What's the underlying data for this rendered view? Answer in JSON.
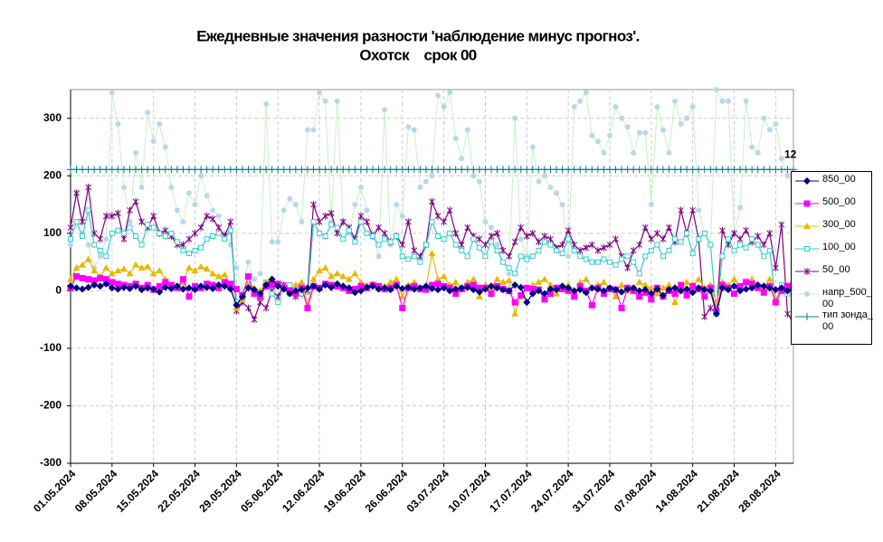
{
  "chart_data": {
    "type": "line",
    "title": "Ежедневные значения разности 'наблюдение минус прогноз'.",
    "subtitle": "Охотск    срок 00",
    "annotation": "12",
    "ylim": [
      -300,
      350
    ],
    "yticks": [
      -300,
      -200,
      -100,
      0,
      100,
      200,
      300
    ],
    "grid": true,
    "legend": "right",
    "categories": [
      "01.05.2024",
      null,
      null,
      null,
      null,
      null,
      null,
      "08.05.2024",
      null,
      null,
      null,
      null,
      null,
      null,
      "15.05.2024",
      null,
      null,
      null,
      null,
      null,
      null,
      "22.05.2024",
      null,
      null,
      null,
      null,
      null,
      null,
      "29.05.2024",
      null,
      null,
      null,
      null,
      null,
      null,
      "05.06.2024",
      null,
      null,
      null,
      null,
      null,
      null,
      "12.06.2024",
      null,
      null,
      null,
      null,
      null,
      null,
      "19.06.2024",
      null,
      null,
      null,
      null,
      null,
      null,
      "26.06.2024",
      null,
      null,
      null,
      null,
      null,
      null,
      "03.07.2024",
      null,
      null,
      null,
      null,
      null,
      null,
      "10.07.2024",
      null,
      null,
      null,
      null,
      null,
      null,
      "17.07.2024",
      null,
      null,
      null,
      null,
      null,
      null,
      "24.07.2024",
      null,
      null,
      null,
      null,
      null,
      null,
      "31.07.2024",
      null,
      null,
      null,
      null,
      null,
      null,
      "07.08.2024",
      null,
      null,
      null,
      null,
      null,
      null,
      "14.08.2024",
      null,
      null,
      null,
      null,
      null,
      null,
      "21.08.2024",
      null,
      null,
      null,
      null,
      null,
      null,
      "28.08.2024",
      null,
      null,
      null
    ],
    "series": [
      {
        "name": "850_00",
        "color": "#000080",
        "marker": "diamond",
        "values": [
          8,
          5,
          3,
          6,
          10,
          8,
          12,
          5,
          3,
          6,
          4,
          8,
          2,
          5,
          3,
          -2,
          6,
          4,
          8,
          3,
          5,
          2,
          8,
          6,
          4,
          10,
          8,
          3,
          -25,
          -10,
          5,
          2,
          -5,
          10,
          20,
          8,
          3,
          -5,
          0,
          2,
          5,
          8,
          3,
          10,
          6,
          12,
          8,
          5,
          -3,
          0,
          6,
          8,
          3,
          5,
          2,
          8,
          4,
          6,
          3,
          5,
          8,
          4,
          2,
          5,
          0,
          3,
          5,
          6,
          2,
          -2,
          3,
          8,
          5,
          2,
          0,
          10,
          6,
          -20,
          -5,
          0,
          -5,
          3,
          2,
          8,
          5,
          0,
          2,
          -3,
          5,
          3,
          0,
          5,
          2,
          -2,
          3,
          5,
          0,
          2,
          -5,
          3,
          -8,
          2,
          5,
          0,
          3,
          -3,
          5,
          2,
          0,
          -40,
          5,
          2,
          8,
          0,
          3,
          5,
          10,
          8,
          5,
          2,
          5,
          0,
          3
        ]
      },
      {
        "name": "500_00",
        "color": "#ff00ff",
        "marker": "square",
        "values": [
          5,
          25,
          22,
          20,
          18,
          22,
          20,
          15,
          12,
          10,
          8,
          12,
          5,
          10,
          2,
          8,
          15,
          10,
          5,
          20,
          -10,
          8,
          5,
          12,
          10,
          5,
          15,
          12,
          3,
          -8,
          25,
          -5,
          -10,
          8,
          10,
          12,
          5,
          0,
          -5,
          5,
          -30,
          8,
          5,
          12,
          10,
          8,
          5,
          0,
          3,
          8,
          5,
          10,
          8,
          3,
          5,
          10,
          -30,
          5,
          8,
          3,
          2,
          10,
          12,
          8,
          5,
          -5,
          3,
          8,
          10,
          5,
          5,
          -5,
          8,
          3,
          0,
          -20,
          -8,
          5,
          3,
          2,
          -15,
          -5,
          5,
          3,
          0,
          -10,
          8,
          0,
          -25,
          5,
          -5,
          3,
          2,
          -30,
          5,
          0,
          -10,
          -3,
          -15,
          5,
          -10,
          0,
          -5,
          10,
          -8,
          8,
          3,
          -10,
          5,
          -35,
          10,
          5,
          -5,
          8,
          15,
          12,
          5,
          -3,
          8,
          -20,
          0,
          8,
          10
        ]
      },
      {
        "name": "300_00",
        "color": "#e6b800",
        "marker": "triangle",
        "values": [
          20,
          40,
          45,
          55,
          35,
          25,
          40,
          30,
          35,
          38,
          30,
          45,
          40,
          42,
          30,
          35,
          20,
          10,
          5,
          15,
          40,
          35,
          42,
          38,
          30,
          25,
          28,
          10,
          -30,
          -15,
          10,
          5,
          0,
          15,
          20,
          10,
          5,
          -5,
          10,
          15,
          -25,
          20,
          35,
          40,
          25,
          30,
          25,
          20,
          30,
          15,
          10,
          12,
          5,
          8,
          15,
          20,
          -10,
          10,
          15,
          5,
          8,
          65,
          20,
          25,
          10,
          15,
          5,
          15,
          20,
          -10,
          10,
          5,
          20,
          15,
          18,
          -40,
          -10,
          5,
          10,
          15,
          20,
          10,
          -5,
          5,
          10,
          -10,
          15,
          20,
          5,
          10,
          15,
          5,
          -10,
          10,
          0,
          5,
          15,
          10,
          5,
          -5,
          5,
          10,
          -20,
          0,
          15,
          10,
          20,
          5,
          10,
          -20,
          15,
          10,
          20,
          5,
          15,
          20,
          10,
          5,
          20,
          -15,
          5,
          10,
          15
        ]
      },
      {
        "name": "100_00",
        "color": "#33cccc",
        "marker": "square-open",
        "values": [
          90,
          120,
          95,
          140,
          80,
          70,
          60,
          100,
          105,
          100,
          110,
          95,
          80,
          115,
          110,
          100,
          95,
          100,
          85,
          70,
          65,
          70,
          75,
          90,
          95,
          100,
          90,
          105,
          -20,
          -15,
          10,
          0,
          -10,
          15,
          -5,
          -20,
          5,
          10,
          0,
          -5,
          -10,
          120,
          100,
          95,
          115,
          110,
          90,
          105,
          85,
          120,
          100,
          95,
          80,
          90,
          85,
          95,
          60,
          55,
          60,
          50,
          80,
          120,
          95,
          90,
          100,
          80,
          70,
          60,
          90,
          75,
          60,
          85,
          70,
          50,
          40,
          30,
          60,
          55,
          60,
          70,
          85,
          80,
          70,
          65,
          90,
          70,
          60,
          55,
          50,
          50,
          55,
          50,
          45,
          55,
          60,
          50,
          30,
          60,
          70,
          80,
          60,
          70,
          90,
          85,
          100,
          65,
          90,
          100,
          80,
          -40,
          60,
          90,
          70,
          80,
          75,
          90,
          80,
          60,
          70,
          -20,
          10,
          -5,
          5
        ]
      },
      {
        "name": "50_00",
        "color": "#800080",
        "marker": "star",
        "values": [
          110,
          170,
          120,
          180,
          100,
          90,
          130,
          130,
          135,
          90,
          140,
          155,
          120,
          110,
          130,
          100,
          105,
          95,
          80,
          80,
          90,
          100,
          110,
          130,
          125,
          110,
          95,
          120,
          -35,
          -20,
          -30,
          -50,
          -20,
          -30,
          0,
          -10,
          10,
          0,
          -10,
          -5,
          0,
          150,
          120,
          130,
          135,
          100,
          120,
          110,
          90,
          130,
          120,
          95,
          110,
          100,
          85,
          95,
          80,
          120,
          70,
          60,
          80,
          155,
          130,
          120,
          140,
          100,
          80,
          110,
          95,
          90,
          80,
          95,
          100,
          70,
          60,
          85,
          110,
          95,
          100,
          85,
          95,
          90,
          75,
          80,
          105,
          80,
          70,
          75,
          80,
          70,
          75,
          80,
          90,
          60,
          40,
          70,
          80,
          110,
          90,
          100,
          90,
          110,
          85,
          140,
          100,
          140,
          90,
          -45,
          -30,
          -40,
          105,
          80,
          100,
          90,
          105,
          85,
          95,
          80,
          100,
          40,
          115,
          -40,
          -55
        ]
      },
      {
        "name": "напр_500_00",
        "color": "#c8f0c8",
        "marker_color": "#b8d8ea",
        "marker": "circle",
        "values": [
          80,
          170,
          100,
          80,
          40,
          60,
          90,
          345,
          290,
          180,
          120,
          240,
          180,
          310,
          260,
          290,
          250,
          180,
          140,
          120,
          170,
          150,
          200,
          165,
          140,
          130,
          100,
          80,
          40,
          0,
          50,
          20,
          30,
          325,
          85,
          85,
          140,
          160,
          150,
          120,
          280,
          280,
          345,
          330,
          120,
          330,
          120,
          100,
          150,
          180,
          140,
          100,
          60,
          315,
          80,
          150,
          130,
          285,
          280,
          180,
          190,
          200,
          340,
          320,
          345,
          265,
          230,
          280,
          200,
          190,
          120,
          110,
          80,
          50,
          30,
          300,
          90,
          60,
          250,
          190,
          200,
          180,
          170,
          150,
          60,
          320,
          330,
          345,
          270,
          260,
          240,
          270,
          320,
          300,
          285,
          240,
          275,
          275,
          150,
          320,
          280,
          240,
          330,
          290,
          300,
          320,
          140,
          100,
          80,
          350,
          330,
          330,
          100,
          145,
          330,
          250,
          240,
          300,
          280,
          290,
          230,
          200,
          180
        ]
      },
      {
        "name": "тип зонда_00",
        "color": "#008080",
        "marker": "plus",
        "values": [
          211,
          211,
          211,
          211,
          211,
          211,
          211,
          211,
          211,
          211,
          211,
          211,
          211,
          211,
          211,
          211,
          211,
          211,
          211,
          211,
          211,
          211,
          211,
          211,
          211,
          211,
          211,
          211,
          211,
          211,
          211,
          211,
          211,
          211,
          211,
          211,
          211,
          211,
          211,
          211,
          211,
          211,
          211,
          211,
          211,
          211,
          211,
          211,
          211,
          211,
          211,
          211,
          211,
          211,
          211,
          211,
          211,
          211,
          211,
          211,
          211,
          211,
          211,
          211,
          211,
          211,
          211,
          211,
          211,
          211,
          211,
          211,
          211,
          211,
          211,
          211,
          211,
          211,
          211,
          211,
          211,
          211,
          211,
          211,
          211,
          211,
          211,
          211,
          211,
          211,
          211,
          211,
          211,
          211,
          211,
          211,
          211,
          211,
          211,
          211,
          211,
          211,
          211,
          211,
          211,
          211,
          211,
          211,
          211,
          211,
          211,
          211,
          211,
          211,
          211,
          211,
          211,
          211,
          211,
          211,
          211,
          211,
          211
        ]
      }
    ]
  }
}
